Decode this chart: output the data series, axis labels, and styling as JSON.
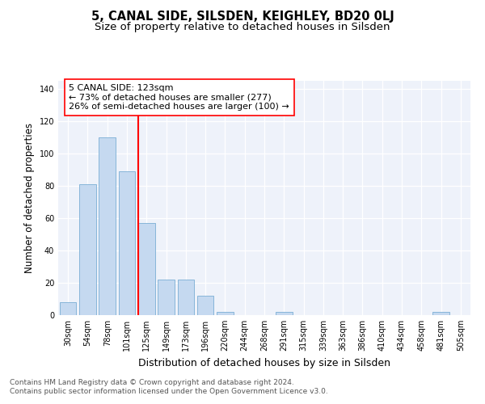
{
  "title1": "5, CANAL SIDE, SILSDEN, KEIGHLEY, BD20 0LJ",
  "title2": "Size of property relative to detached houses in Silsden",
  "xlabel": "Distribution of detached houses by size in Silsden",
  "ylabel": "Number of detached properties",
  "categories": [
    "30sqm",
    "54sqm",
    "78sqm",
    "101sqm",
    "125sqm",
    "149sqm",
    "173sqm",
    "196sqm",
    "220sqm",
    "244sqm",
    "268sqm",
    "291sqm",
    "315sqm",
    "339sqm",
    "363sqm",
    "386sqm",
    "410sqm",
    "434sqm",
    "458sqm",
    "481sqm",
    "505sqm"
  ],
  "values": [
    8,
    81,
    110,
    89,
    57,
    22,
    22,
    12,
    2,
    0,
    0,
    2,
    0,
    0,
    0,
    0,
    0,
    0,
    0,
    2,
    0
  ],
  "bar_color": "#c5d9f0",
  "bar_edge_color": "#7aadd4",
  "red_line_index": 4,
  "annotation_line1": "5 CANAL SIDE: 123sqm",
  "annotation_line2": "← 73% of detached houses are smaller (277)",
  "annotation_line3": "26% of semi-detached houses are larger (100) →",
  "footer1": "Contains HM Land Registry data © Crown copyright and database right 2024.",
  "footer2": "Contains public sector information licensed under the Open Government Licence v3.0.",
  "ylim": [
    0,
    145
  ],
  "yticks": [
    0,
    20,
    40,
    60,
    80,
    100,
    120,
    140
  ],
  "bg_color": "#eef2fa",
  "grid_color": "#ffffff",
  "title1_fontsize": 10.5,
  "title2_fontsize": 9.5,
  "xlabel_fontsize": 9,
  "ylabel_fontsize": 8.5,
  "tick_fontsize": 7,
  "annotation_fontsize": 8,
  "footer_fontsize": 6.5
}
